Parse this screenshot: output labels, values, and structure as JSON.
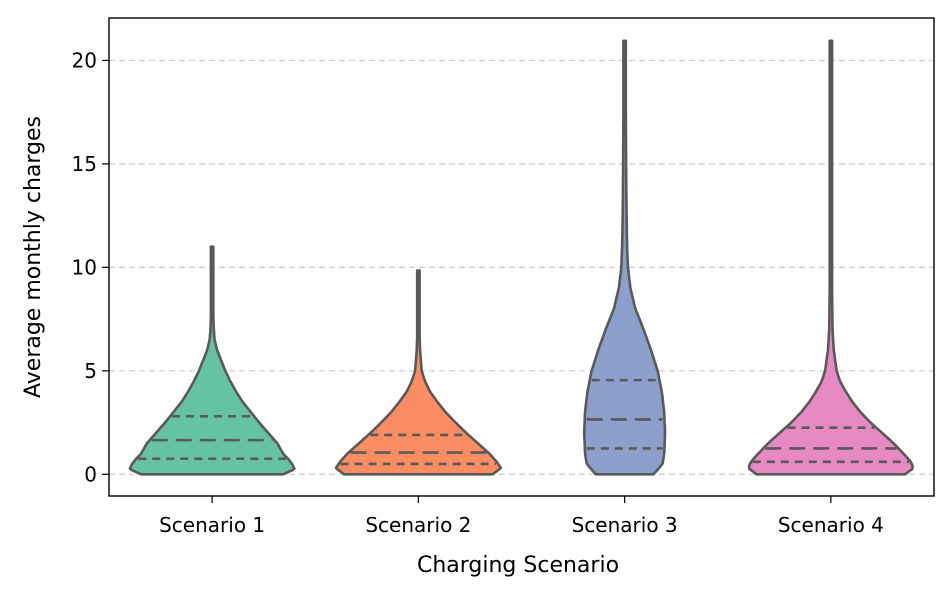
{
  "chart_data": {
    "type": "violin",
    "title": "",
    "xlabel": "Charging Scenario",
    "ylabel": "Average monthly charges",
    "ylim": [
      -1.05,
      22.05
    ],
    "yticks": [
      0,
      5,
      10,
      15,
      20
    ],
    "grid": "y-dashed",
    "inner": "quartile",
    "categories": [
      "Scenario 1",
      "Scenario 2",
      "Scenario 3",
      "Scenario 4"
    ],
    "series": [
      {
        "name": "Scenario 1",
        "color": "#66c2a5",
        "min": 0,
        "max": 11.0,
        "q1": 0.75,
        "median": 1.65,
        "q3": 2.8,
        "profile": [
          [
            0,
            0.86
          ],
          [
            0.25,
            1.0
          ],
          [
            0.5,
            0.97
          ],
          [
            0.75,
            0.92
          ],
          [
            1.0,
            0.86
          ],
          [
            1.5,
            0.79
          ],
          [
            2.0,
            0.68
          ],
          [
            2.5,
            0.57
          ],
          [
            3.0,
            0.47
          ],
          [
            3.5,
            0.37
          ],
          [
            4.0,
            0.29
          ],
          [
            4.5,
            0.22
          ],
          [
            5.0,
            0.16
          ],
          [
            5.5,
            0.11
          ],
          [
            6.0,
            0.06
          ],
          [
            6.5,
            0.03
          ],
          [
            7.0,
            0.02
          ],
          [
            8.0,
            0.012
          ],
          [
            9.0,
            0.01
          ],
          [
            10.0,
            0.008
          ],
          [
            11.0,
            0.006
          ]
        ]
      },
      {
        "name": "Scenario 2",
        "color": "#fc8d62",
        "min": 0,
        "max": 9.85,
        "q1": 0.5,
        "median": 1.05,
        "q3": 1.9,
        "profile": [
          [
            0,
            0.9
          ],
          [
            0.3,
            1.0
          ],
          [
            0.6,
            0.95
          ],
          [
            1.0,
            0.86
          ],
          [
            1.5,
            0.72
          ],
          [
            2.0,
            0.58
          ],
          [
            2.5,
            0.45
          ],
          [
            3.0,
            0.33
          ],
          [
            3.5,
            0.23
          ],
          [
            4.0,
            0.14
          ],
          [
            4.5,
            0.08
          ],
          [
            5.0,
            0.04
          ],
          [
            6.0,
            0.02
          ],
          [
            7.0,
            0.012
          ],
          [
            8.0,
            0.01
          ],
          [
            9.0,
            0.008
          ],
          [
            9.85,
            0.006
          ]
        ]
      },
      {
        "name": "Scenario 3",
        "color": "#8da0cb",
        "min": 0,
        "max": 20.95,
        "q1": 1.25,
        "median": 2.65,
        "q3": 4.55,
        "profile": [
          [
            0,
            0.35
          ],
          [
            0.5,
            0.46
          ],
          [
            1.0,
            0.48
          ],
          [
            2.0,
            0.49
          ],
          [
            3.0,
            0.48
          ],
          [
            4.0,
            0.45
          ],
          [
            5.0,
            0.4
          ],
          [
            6.0,
            0.32
          ],
          [
            7.0,
            0.23
          ],
          [
            8.0,
            0.13
          ],
          [
            9.0,
            0.07
          ],
          [
            10.0,
            0.04
          ],
          [
            11.0,
            0.03
          ],
          [
            13.0,
            0.022
          ],
          [
            15.0,
            0.018
          ],
          [
            18.0,
            0.014
          ],
          [
            20.95,
            0.01
          ]
        ]
      },
      {
        "name": "Scenario 4",
        "color": "#e78ac3",
        "min": 0,
        "max": 20.95,
        "q1": 0.6,
        "median": 1.25,
        "q3": 2.25,
        "profile": [
          [
            0,
            0.9
          ],
          [
            0.3,
            1.0
          ],
          [
            0.6,
            0.97
          ],
          [
            1.0,
            0.88
          ],
          [
            1.5,
            0.76
          ],
          [
            2.0,
            0.62
          ],
          [
            2.5,
            0.48
          ],
          [
            3.0,
            0.36
          ],
          [
            3.5,
            0.26
          ],
          [
            4.0,
            0.18
          ],
          [
            4.5,
            0.11
          ],
          [
            5.0,
            0.07
          ],
          [
            6.0,
            0.035
          ],
          [
            7.0,
            0.02
          ],
          [
            9.0,
            0.014
          ],
          [
            12.0,
            0.012
          ],
          [
            16.0,
            0.01
          ],
          [
            20.95,
            0.008
          ]
        ]
      }
    ]
  }
}
